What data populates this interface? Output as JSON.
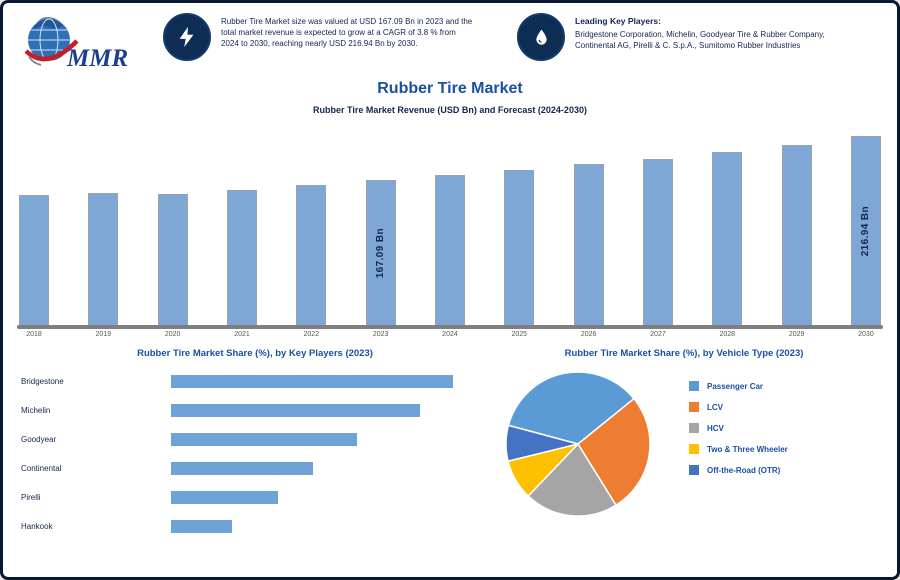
{
  "brand": {
    "logo_text": "MMR"
  },
  "header": {
    "stat1": {
      "icon": "lightning-icon",
      "text": "Rubber Tire Market size was valued at USD 167.09 Bn in 2023 and the total market revenue is expected to grow at a CAGR of 3.8 % from 2024 to 2030, reaching nearly USD 216.94 Bn by 2030."
    },
    "stat2": {
      "icon": "drop-icon",
      "title": "Leading Key Players:",
      "text": "Bridgestone Corporation, Michelin, Goodyear Tire & Rubber Company, Continental AG, Pirelli & C. S.p.A., Sumitomo Rubber Industries"
    }
  },
  "titles": {
    "main": "Rubber Tire Market",
    "subtitle": "Rubber Tire Market Revenue (USD Bn) and Forecast (2024-2030)"
  },
  "chart_data": [
    {
      "type": "bar",
      "title": "Rubber Tire Market Revenue (USD Bn) and Forecast (2024-2030)",
      "categories": [
        "2018",
        "2019",
        "2020",
        "2021",
        "2022",
        "2023",
        "2024",
        "2025",
        "2026",
        "2027",
        "2028",
        "2029",
        "2030"
      ],
      "values": [
        149.3,
        151.8,
        150.2,
        155.6,
        161.2,
        167.09,
        172.5,
        178.3,
        184.6,
        191.3,
        198.5,
        207.4,
        216.94
      ],
      "ylim": [
        0,
        230
      ],
      "ylabel": "Revenue (USD Bn)",
      "bar_color": "#7ea7d6",
      "grid": false,
      "data_labels": {
        "2023": "167.09 Bn",
        "2030": "216.94 Bn"
      }
    },
    {
      "type": "bar",
      "orientation": "horizontal",
      "title": "Rubber Tire Market Share (%), by Key Players (2023)",
      "categories": [
        "Bridgestone",
        "Michelin",
        "Goodyear",
        "Continental",
        "Pirelli",
        "Hankook"
      ],
      "values": [
        15.3,
        13.5,
        10.1,
        7.7,
        5.8,
        3.3
      ],
      "xlim": [
        0,
        16
      ],
      "bar_color": "#6fa3d8",
      "grid": false
    },
    {
      "type": "pie",
      "title": "Rubber Tire Market Share (%), by Vehicle Type (2023)",
      "labels": [
        "Passenger Car",
        "LCV",
        "HCV",
        "Two & Three Wheeler",
        "Off-the-Road (OTR)"
      ],
      "values": [
        35,
        27,
        21,
        9,
        8
      ],
      "colors": [
        "#5B9BD5",
        "#ED7D31",
        "#A5A5A5",
        "#FFC000",
        "#4472C4"
      ],
      "legend_position": "right",
      "start_angle": -75
    }
  ]
}
